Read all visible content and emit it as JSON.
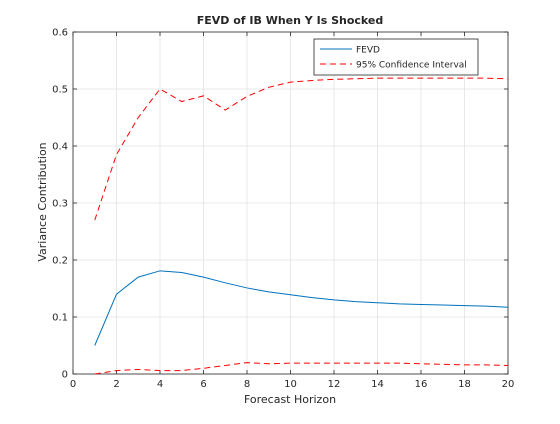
{
  "chart_data": {
    "type": "line",
    "title": "FEVD of IB When Y Is Shocked",
    "xlabel": "Forecast Horizon",
    "ylabel": "Variance Contribution",
    "xlim": [
      0,
      20
    ],
    "ylim": [
      0,
      0.6
    ],
    "xticks": [
      0,
      2,
      4,
      6,
      8,
      10,
      12,
      14,
      16,
      18,
      20
    ],
    "xtick_labels": [
      "0",
      "2",
      "4",
      "6",
      "8",
      "10",
      "12",
      "14",
      "16",
      "18",
      "20"
    ],
    "yticks": [
      0,
      0.1,
      0.2,
      0.3,
      0.4,
      0.5,
      0.6
    ],
    "ytick_labels": [
      "0",
      "0.1",
      "0.2",
      "0.3",
      "0.4",
      "0.5",
      "0.6"
    ],
    "grid": true,
    "legend_position": "top-right",
    "x": [
      1,
      2,
      3,
      4,
      5,
      6,
      7,
      8,
      9,
      10,
      11,
      12,
      13,
      14,
      15,
      16,
      17,
      18,
      19,
      20
    ],
    "series": [
      {
        "name": "FEVD",
        "color": "#0072bd",
        "dash": "solid",
        "values": [
          0.05,
          0.14,
          0.17,
          0.181,
          0.178,
          0.17,
          0.16,
          0.151,
          0.144,
          0.139,
          0.134,
          0.13,
          0.127,
          0.125,
          0.123,
          0.122,
          0.121,
          0.12,
          0.119,
          0.117
        ]
      },
      {
        "name": "95% Confidence Interval",
        "color": "#ff0000",
        "dash": "dashed",
        "values": [
          0.27,
          0.385,
          0.45,
          0.5,
          0.478,
          0.488,
          0.463,
          0.487,
          0.503,
          0.512,
          0.515,
          0.517,
          0.518,
          0.519,
          0.519,
          0.519,
          0.519,
          0.519,
          0.519,
          0.518
        ]
      },
      {
        "name": "",
        "color": "#ff0000",
        "dash": "dashed",
        "values": [
          0.0,
          0.006,
          0.008,
          0.006,
          0.006,
          0.01,
          0.015,
          0.02,
          0.018,
          0.019,
          0.019,
          0.019,
          0.019,
          0.019,
          0.019,
          0.018,
          0.017,
          0.016,
          0.016,
          0.015
        ]
      }
    ]
  }
}
